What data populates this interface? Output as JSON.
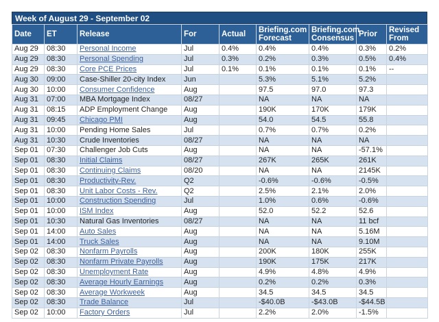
{
  "title": "Week of August 29 - September 02",
  "headers": [
    "Date",
    "ET",
    "Release",
    "For",
    "Actual",
    "Briefing.com Forecast",
    "Briefing.com Consensus",
    "Prior",
    "Revised From"
  ],
  "rows": [
    {
      "date": "Aug 29",
      "et": "08:30",
      "release": "Personal Income",
      "link": true,
      "for": "Jul",
      "actual": "0.4%",
      "forecast": "0.4%",
      "consensus": "0.4%",
      "prior": "0.3%",
      "revised": "0.2%"
    },
    {
      "date": "Aug 29",
      "et": "08:30",
      "release": "Personal Spending",
      "link": true,
      "for": "Jul",
      "actual": "0.3%",
      "forecast": "0.2%",
      "consensus": "0.3%",
      "prior": "0.5%",
      "revised": "0.4%"
    },
    {
      "date": "Aug 29",
      "et": "08:30",
      "release": "Core PCE Prices",
      "link": true,
      "for": "Jul",
      "actual": "0.1%",
      "forecast": "0.1%",
      "consensus": "0.1%",
      "prior": "0.1%",
      "revised": "--"
    },
    {
      "date": "Aug 30",
      "et": "09:00",
      "release": "Case-Shiller 20-city Index",
      "link": false,
      "for": "Jun",
      "actual": "",
      "forecast": "5.3%",
      "consensus": "5.1%",
      "prior": "5.2%",
      "revised": ""
    },
    {
      "date": "Aug 30",
      "et": "10:00",
      "release": "Consumer Confidence",
      "link": true,
      "for": "Aug",
      "actual": "",
      "forecast": "97.5",
      "consensus": "97.0",
      "prior": "97.3",
      "revised": ""
    },
    {
      "date": "Aug 31",
      "et": "07:00",
      "release": "MBA Mortgage Index",
      "link": false,
      "for": "08/27",
      "actual": "",
      "forecast": "NA",
      "consensus": "NA",
      "prior": "NA",
      "revised": ""
    },
    {
      "date": "Aug 31",
      "et": "08:15",
      "release": "ADP Employment Change",
      "link": false,
      "for": "Aug",
      "actual": "",
      "forecast": "190K",
      "consensus": "170K",
      "prior": "179K",
      "revised": ""
    },
    {
      "date": "Aug 31",
      "et": "09:45",
      "release": "Chicago PMI",
      "link": true,
      "for": "Aug",
      "actual": "",
      "forecast": "54.0",
      "consensus": "54.5",
      "prior": "55.8",
      "revised": ""
    },
    {
      "date": "Aug 31",
      "et": "10:00",
      "release": "Pending Home Sales",
      "link": false,
      "for": "Jul",
      "actual": "",
      "forecast": "0.7%",
      "consensus": "0.7%",
      "prior": "0.2%",
      "revised": ""
    },
    {
      "date": "Aug 31",
      "et": "10:30",
      "release": "Crude Inventories",
      "link": false,
      "for": "08/27",
      "actual": "",
      "forecast": "NA",
      "consensus": "NA",
      "prior": "NA",
      "revised": ""
    },
    {
      "date": "Sep 01",
      "et": "07:30",
      "release": "Challenger Job Cuts",
      "link": false,
      "for": "Aug",
      "actual": "",
      "forecast": "NA",
      "consensus": "NA",
      "prior": "-57.1%",
      "revised": ""
    },
    {
      "date": "Sep 01",
      "et": "08:30",
      "release": "Initial Claims",
      "link": true,
      "for": "08/27",
      "actual": "",
      "forecast": "267K",
      "consensus": "265K",
      "prior": "261K",
      "revised": ""
    },
    {
      "date": "Sep 01",
      "et": "08:30",
      "release": "Continuing Claims",
      "link": true,
      "for": "08/20",
      "actual": "",
      "forecast": "NA",
      "consensus": "NA",
      "prior": "2145K",
      "revised": ""
    },
    {
      "date": "Sep 01",
      "et": "08:30",
      "release": "Productivity-Rev.",
      "link": true,
      "for": "Q2",
      "actual": "",
      "forecast": "-0.6%",
      "consensus": "-0.6%",
      "prior": "-0.5%",
      "revised": ""
    },
    {
      "date": "Sep 01",
      "et": "08:30",
      "release": "Unit Labor Costs - Rev.",
      "link": true,
      "for": "Q2",
      "actual": "",
      "forecast": "2.5%",
      "consensus": "2.1%",
      "prior": "2.0%",
      "revised": ""
    },
    {
      "date": "Sep 01",
      "et": "10:00",
      "release": "Construction Spending",
      "link": true,
      "for": "Jul",
      "actual": "",
      "forecast": "1.0%",
      "consensus": "0.6%",
      "prior": "-0.6%",
      "revised": ""
    },
    {
      "date": "Sep 01",
      "et": "10:00",
      "release": "ISM Index",
      "link": true,
      "for": "Aug",
      "actual": "",
      "forecast": "52.0",
      "consensus": "52.2",
      "prior": "52.6",
      "revised": ""
    },
    {
      "date": "Sep 01",
      "et": "10:30",
      "release": "Natural Gas Inventories",
      "link": false,
      "for": "08/27",
      "actual": "",
      "forecast": "NA",
      "consensus": "NA",
      "prior": "11 bcf",
      "revised": ""
    },
    {
      "date": "Sep 01",
      "et": "14:00",
      "release": "Auto Sales",
      "link": true,
      "for": "Aug",
      "actual": "",
      "forecast": "NA",
      "consensus": "NA",
      "prior": "5.16M",
      "revised": ""
    },
    {
      "date": "Sep 01",
      "et": "14:00",
      "release": "Truck Sales",
      "link": true,
      "for": "Aug",
      "actual": "",
      "forecast": "NA",
      "consensus": "NA",
      "prior": "9.10M",
      "revised": ""
    },
    {
      "date": "Sep 02",
      "et": "08:30",
      "release": "Nonfarm Payrolls",
      "link": true,
      "for": "Aug",
      "actual": "",
      "forecast": "200K",
      "consensus": "180K",
      "prior": "255K",
      "revised": ""
    },
    {
      "date": "Sep 02",
      "et": "08:30",
      "release": "Nonfarm Private Payrolls",
      "link": true,
      "for": "Aug",
      "actual": "",
      "forecast": "190K",
      "consensus": "175K",
      "prior": "217K",
      "revised": ""
    },
    {
      "date": "Sep 02",
      "et": "08:30",
      "release": "Unemployment Rate",
      "link": true,
      "for": "Aug",
      "actual": "",
      "forecast": "4.9%",
      "consensus": "4.8%",
      "prior": "4.9%",
      "revised": ""
    },
    {
      "date": "Sep 02",
      "et": "08:30",
      "release": "Average Hourly Earnings",
      "link": true,
      "for": "Aug",
      "actual": "",
      "forecast": "0.2%",
      "consensus": "0.2%",
      "prior": "0.3%",
      "revised": ""
    },
    {
      "date": "Sep 02",
      "et": "08:30",
      "release": "Average Workweek",
      "link": true,
      "for": "Aug",
      "actual": "",
      "forecast": "34.5",
      "consensus": "34.5",
      "prior": "34.5",
      "revised": ""
    },
    {
      "date": "Sep 02",
      "et": "08:30",
      "release": "Trade Balance",
      "link": true,
      "for": "Jul",
      "actual": "",
      "forecast": "-$40.0B",
      "consensus": "-$43.0B",
      "prior": "-$44.5B",
      "revised": ""
    },
    {
      "date": "Sep 02",
      "et": "10:00",
      "release": "Factory Orders",
      "link": true,
      "for": "Jul",
      "actual": "",
      "forecast": "2.2%",
      "consensus": "2.0%",
      "prior": "-1.5%",
      "revised": ""
    }
  ],
  "colors": {
    "title_bg": "#1f4e82",
    "header_bg": "#2d6096",
    "row_alt": "#d6e2f0",
    "link": "#3a5f9a"
  }
}
